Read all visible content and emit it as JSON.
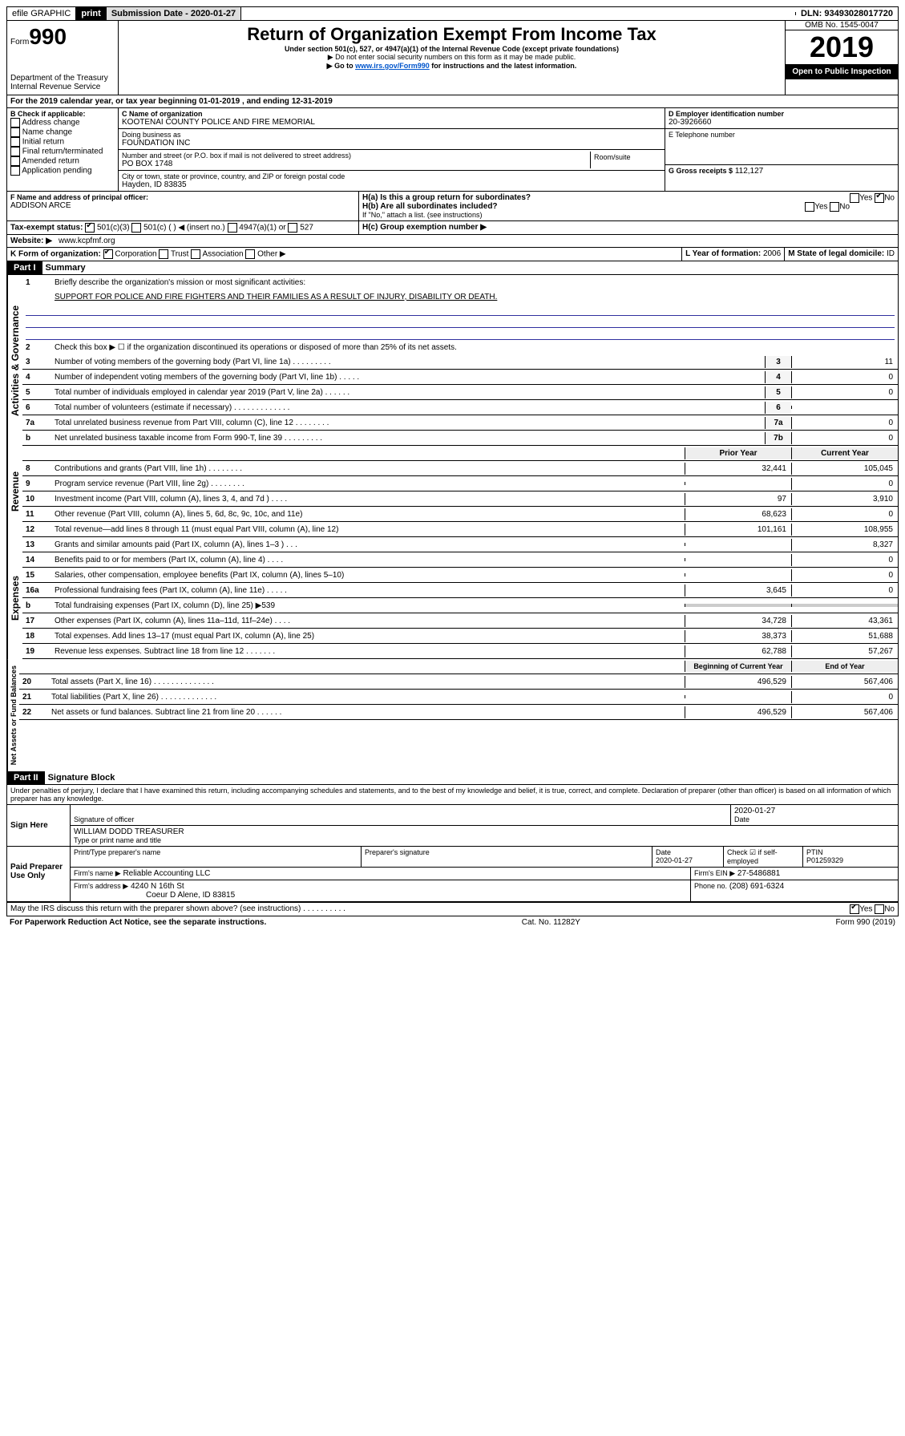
{
  "topbar": {
    "efile": "efile GRAPHIC",
    "print": "print",
    "sub_label": "Submission Date - 2020-01-27",
    "dln": "DLN: 93493028017720"
  },
  "header": {
    "form_label": "Form",
    "form_num": "990",
    "dept": "Department of the Treasury",
    "irs": "Internal Revenue Service",
    "title": "Return of Organization Exempt From Income Tax",
    "sub1": "Under section 501(c), 527, or 4947(a)(1) of the Internal Revenue Code (except private foundations)",
    "sub2": "▶ Do not enter social security numbers on this form as it may be made public.",
    "sub3_pre": "▶ Go to ",
    "sub3_link": "www.irs.gov/Form990",
    "sub3_post": " for instructions and the latest information.",
    "omb": "OMB No. 1545-0047",
    "year": "2019",
    "open": "Open to Public Inspection"
  },
  "period": "For the 2019 calendar year, or tax year beginning 01-01-2019   , and ending 12-31-2019",
  "boxB": {
    "label": "B Check if applicable:",
    "opts": [
      "Address change",
      "Name change",
      "Initial return",
      "Final return/terminated",
      "Amended return",
      "Application pending"
    ]
  },
  "boxC": {
    "label": "C Name of organization",
    "name": "KOOTENAI COUNTY POLICE AND FIRE MEMORIAL",
    "dba_label": "Doing business as",
    "dba": "FOUNDATION INC",
    "addr_label": "Number and street (or P.O. box if mail is not delivered to street address)",
    "room_label": "Room/suite",
    "addr": "PO BOX 1748",
    "city_label": "City or town, state or province, country, and ZIP or foreign postal code",
    "city": "Hayden, ID  83835"
  },
  "boxD": {
    "label": "D Employer identification number",
    "val": "20-3926660"
  },
  "boxE": {
    "label": "E Telephone number"
  },
  "boxG": {
    "label": "G Gross receipts $",
    "val": "112,127"
  },
  "boxF": {
    "label": "F  Name and address of principal officer:",
    "val": "ADDISON ARCE"
  },
  "boxH": {
    "a": "H(a)  Is this a group return for subordinates?",
    "b": "H(b)  Are all subordinates included?",
    "note": "If \"No,\" attach a list. (see instructions)",
    "c": "H(c)  Group exemption number ▶",
    "yes": "Yes",
    "no": "No"
  },
  "taxexempt": {
    "label": "Tax-exempt status:",
    "o1": "501(c)(3)",
    "o2": "501(c) (   ) ◀ (insert no.)",
    "o3": "4947(a)(1) or",
    "o4": "527"
  },
  "website": {
    "label": "Website: ▶",
    "val": "www.kcpfmf.org"
  },
  "boxK": {
    "label": "K Form of organization:",
    "opts": [
      "Corporation",
      "Trust",
      "Association",
      "Other ▶"
    ]
  },
  "boxL": {
    "label": "L Year of formation:",
    "val": "2006"
  },
  "boxM": {
    "label": "M State of legal domicile:",
    "val": "ID"
  },
  "part1": {
    "label": "Part I",
    "title": "Summary",
    "q1": "Briefly describe the organization's mission or most significant activities:",
    "mission": "SUPPORT FOR POLICE AND FIRE FIGHTERS AND THEIR FAMILIES AS A RESULT OF INJURY, DISABILITY OR DEATH.",
    "q2": "Check this box ▶ ☐  if the organization discontinued its operations or disposed of more than 25% of its net assets."
  },
  "gov_lines": [
    {
      "n": "3",
      "t": "Number of voting members of the governing body (Part VI, line 1a)   .   .   .   .   .   .   .   .   .",
      "b": "3",
      "v": "11"
    },
    {
      "n": "4",
      "t": "Number of independent voting members of the governing body (Part VI, line 1b)   .   .   .   .   .",
      "b": "4",
      "v": "0"
    },
    {
      "n": "5",
      "t": "Total number of individuals employed in calendar year 2019 (Part V, line 2a)   .   .   .   .   .   .",
      "b": "5",
      "v": "0"
    },
    {
      "n": "6",
      "t": "Total number of volunteers (estimate if necessary)   .   .   .   .   .   .   .   .   .   .   .   .   .",
      "b": "6",
      "v": ""
    },
    {
      "n": "7a",
      "t": "Total unrelated business revenue from Part VIII, column (C), line 12   .   .   .   .   .   .   .   .",
      "b": "7a",
      "v": "0"
    },
    {
      "n": "b",
      "t": "Net unrelated business taxable income from Form 990-T, line 39   .   .   .   .   .   .   .   .   .",
      "b": "7b",
      "v": "0"
    }
  ],
  "rev_head": {
    "prior": "Prior Year",
    "curr": "Current Year"
  },
  "rev_lines": [
    {
      "n": "8",
      "t": "Contributions and grants (Part VIII, line 1h)   .   .   .   .   .   .   .   .",
      "p": "32,441",
      "c": "105,045"
    },
    {
      "n": "9",
      "t": "Program service revenue (Part VIII, line 2g)   .   .   .   .   .   .   .   .",
      "p": "",
      "c": "0"
    },
    {
      "n": "10",
      "t": "Investment income (Part VIII, column (A), lines 3, 4, and 7d )   .   .   .   .",
      "p": "97",
      "c": "3,910"
    },
    {
      "n": "11",
      "t": "Other revenue (Part VIII, column (A), lines 5, 6d, 8c, 9c, 10c, and 11e)",
      "p": "68,623",
      "c": "0"
    },
    {
      "n": "12",
      "t": "Total revenue—add lines 8 through 11 (must equal Part VIII, column (A), line 12)",
      "p": "101,161",
      "c": "108,955"
    }
  ],
  "exp_lines": [
    {
      "n": "13",
      "t": "Grants and similar amounts paid (Part IX, column (A), lines 1–3 )   .   .   .",
      "p": "",
      "c": "8,327"
    },
    {
      "n": "14",
      "t": "Benefits paid to or for members (Part IX, column (A), line 4)   .   .   .   .",
      "p": "",
      "c": "0"
    },
    {
      "n": "15",
      "t": "Salaries, other compensation, employee benefits (Part IX, column (A), lines 5–10)",
      "p": "",
      "c": "0"
    },
    {
      "n": "16a",
      "t": "Professional fundraising fees (Part IX, column (A), line 11e)   .   .   .   .   .",
      "p": "3,645",
      "c": "0"
    },
    {
      "n": "b",
      "t": "Total fundraising expenses (Part IX, column (D), line 25) ▶539",
      "p": "—",
      "c": "—"
    },
    {
      "n": "17",
      "t": "Other expenses (Part IX, column (A), lines 11a–11d, 11f–24e)   .   .   .   .",
      "p": "34,728",
      "c": "43,361"
    },
    {
      "n": "18",
      "t": "Total expenses. Add lines 13–17 (must equal Part IX, column (A), line 25)",
      "p": "38,373",
      "c": "51,688"
    },
    {
      "n": "19",
      "t": "Revenue less expenses. Subtract line 18 from line 12   .   .   .   .   .   .   .",
      "p": "62,788",
      "c": "57,267"
    }
  ],
  "net_head": {
    "prior": "Beginning of Current Year",
    "curr": "End of Year"
  },
  "net_lines": [
    {
      "n": "20",
      "t": "Total assets (Part X, line 16)   .   .   .   .   .   .   .   .   .   .   .   .   .   .",
      "p": "496,529",
      "c": "567,406"
    },
    {
      "n": "21",
      "t": "Total liabilities (Part X, line 26)   .   .   .   .   .   .   .   .   .   .   .   .   .",
      "p": "",
      "c": "0"
    },
    {
      "n": "22",
      "t": "Net assets or fund balances. Subtract line 21 from line 20   .   .   .   .   .   .",
      "p": "496,529",
      "c": "567,406"
    }
  ],
  "part2": {
    "label": "Part II",
    "title": "Signature Block",
    "decl": "Under penalties of perjury, I declare that I have examined this return, including accompanying schedules and statements, and to the best of my knowledge and belief, it is true, correct, and complete. Declaration of preparer (other than officer) is based on all information of which preparer has any knowledge."
  },
  "sign": {
    "here": "Sign Here",
    "sig_label": "Signature of officer",
    "date": "2020-01-27",
    "date_label": "Date",
    "name": "WILLIAM DODD TREASURER",
    "name_label": "Type or print name and title"
  },
  "paid": {
    "label": "Paid Preparer Use Only",
    "h1": "Print/Type preparer's name",
    "h2": "Preparer's signature",
    "h3": "Date",
    "h4": "Check ☑ if self-employed",
    "h5": "PTIN",
    "date": "2020-01-27",
    "ptin": "P01259329",
    "firm_label": "Firm's name    ▶",
    "firm": "Reliable Accounting LLC",
    "ein_label": "Firm's EIN ▶",
    "ein": "27-5486881",
    "addr_label": "Firm's address ▶",
    "addr": "4240 N 16th St",
    "addr2": "Coeur D Alene, ID  83815",
    "phone_label": "Phone no.",
    "phone": "(208) 691-6324"
  },
  "discuss": "May the IRS discuss this return with the preparer shown above? (see instructions)   .   .   .   .   .   .   .   .   .   .",
  "footer": {
    "l": "For Paperwork Reduction Act Notice, see the separate instructions.",
    "c": "Cat. No. 11282Y",
    "r": "Form 990 (2019)"
  },
  "vert": {
    "gov": "Activities & Governance",
    "rev": "Revenue",
    "exp": "Expenses",
    "net": "Net Assets or Fund Balances"
  }
}
